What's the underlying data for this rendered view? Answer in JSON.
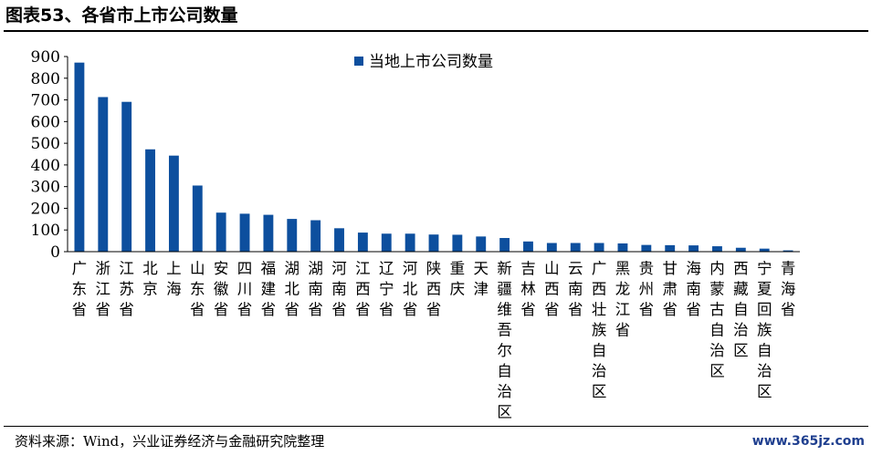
{
  "header": {
    "title": "图表53、各省市上市公司数量"
  },
  "footer": {
    "source": "资料来源：Wind，兴业证券经济与金融研究院整理",
    "watermark": "www.365jz.com"
  },
  "colors": {
    "bar": "#0d4f9e"
  },
  "chart_data": {
    "type": "bar",
    "title": "",
    "xlabel": "",
    "ylabel": "",
    "ylim": [
      0,
      900
    ],
    "yticks": [
      0,
      100,
      200,
      300,
      400,
      500,
      600,
      700,
      800,
      900
    ],
    "legend": "top-center",
    "grid": false,
    "categories": [
      "广东省",
      "浙江省",
      "江苏省",
      "北京",
      "上海",
      "山东省",
      "安徽省",
      "四川省",
      "福建省",
      "湖北省",
      "湖南省",
      "河南省",
      "江西省",
      "辽宁省",
      "河北省",
      "陕西省",
      "重庆",
      "天津",
      "新疆维吾尔自治区",
      "吉林省",
      "山西省",
      "云南省",
      "广西壮族自治区",
      "黑龙江省",
      "贵州省",
      "甘肃省",
      "海南省",
      "内蒙古自治区",
      "西藏自治区",
      "宁夏回族自治区",
      "青海省"
    ],
    "series": [
      {
        "name": "当地上市公司数量",
        "values": [
          872,
          713,
          691,
          472,
          443,
          305,
          180,
          175,
          170,
          151,
          145,
          108,
          88,
          83,
          83,
          79,
          78,
          70,
          63,
          47,
          40,
          40,
          40,
          38,
          31,
          30,
          29,
          25,
          18,
          14,
          6
        ]
      }
    ]
  }
}
